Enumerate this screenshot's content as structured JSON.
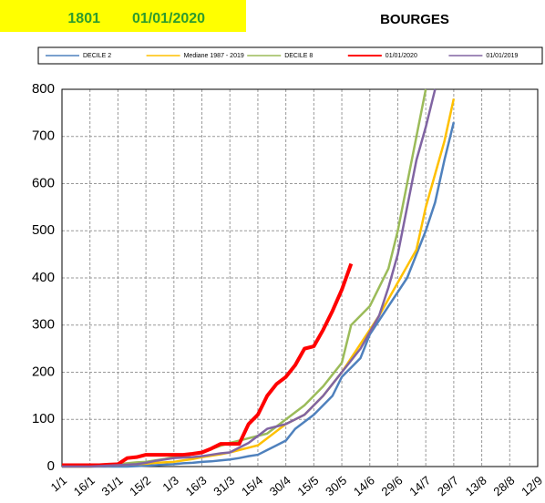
{
  "chart_data": {
    "type": "line",
    "header": {
      "code": "1801",
      "date": "01/01/2020"
    },
    "title": "BOURGES",
    "x": [
      0,
      5,
      10,
      15,
      20,
      25,
      30,
      35,
      40,
      45,
      50,
      55,
      60,
      65,
      70,
      75,
      80,
      85,
      90,
      95,
      100,
      105,
      110,
      115,
      120,
      125,
      130,
      135,
      140,
      145,
      150,
      155,
      160,
      165,
      170,
      175,
      180,
      185,
      190,
      195,
      200,
      205,
      210
    ],
    "series": [
      {
        "name": "DECILE 2",
        "color": "#4f81bd",
        "values": [
          0,
          0,
          0,
          0,
          0,
          0,
          0,
          0,
          1,
          2,
          3,
          4,
          5,
          7,
          8,
          10,
          11,
          13,
          15,
          18,
          22,
          25,
          35,
          45,
          55,
          80,
          95,
          110,
          130,
          150,
          190,
          210,
          230,
          280,
          310,
          340,
          370,
          400,
          450,
          500,
          560,
          650,
          730
        ]
      },
      {
        "name": "Mediane 1987 - 2019",
        "color": "#ffc000",
        "values": [
          0,
          0,
          0,
          0,
          1,
          2,
          3,
          4,
          5,
          6,
          8,
          9,
          10,
          13,
          16,
          20,
          23,
          26,
          30,
          35,
          40,
          45,
          60,
          75,
          90,
          100,
          110,
          130,
          150,
          175,
          200,
          230,
          260,
          290,
          320,
          355,
          390,
          425,
          460,
          550,
          620,
          690,
          780
        ]
      },
      {
        "name": "DECILE 8",
        "color": "#9bbb59",
        "values": [
          0,
          0,
          0,
          0,
          2,
          4,
          5,
          7,
          9,
          10,
          13,
          16,
          20,
          23,
          26,
          30,
          37,
          44,
          50,
          55,
          60,
          65,
          70,
          85,
          100,
          115,
          130,
          150,
          170,
          195,
          220,
          300,
          320,
          340,
          380,
          420,
          500,
          600,
          700,
          800,
          null,
          null,
          null
        ]
      },
      {
        "name": "01/01/2020",
        "color": "#ff0000",
        "width": 4,
        "values": [
          3,
          3,
          3,
          3,
          3,
          4,
          5,
          18,
          20,
          25,
          25,
          25,
          25,
          25,
          27,
          30,
          38,
          48,
          48,
          48,
          90,
          110,
          150,
          175,
          190,
          215,
          250,
          255,
          290,
          330,
          375,
          430,
          null,
          null,
          null,
          null,
          null,
          null,
          null,
          null,
          null,
          null,
          null
        ]
      },
      {
        "name": "01/01/2019",
        "color": "#8064a2",
        "values": [
          0,
          0,
          0,
          0,
          1,
          2,
          3,
          4,
          5,
          8,
          12,
          15,
          18,
          19,
          20,
          22,
          25,
          28,
          30,
          40,
          50,
          65,
          80,
          85,
          90,
          100,
          110,
          130,
          150,
          175,
          200,
          225,
          250,
          285,
          320,
          380,
          450,
          550,
          650,
          720,
          800,
          null,
          null
        ]
      }
    ],
    "xlim": [
      0,
      255
    ],
    "xticks": [
      {
        "value": 0,
        "label": "1/1"
      },
      {
        "value": 15,
        "label": "16/1"
      },
      {
        "value": 30,
        "label": "31/1"
      },
      {
        "value": 45,
        "label": "15/2"
      },
      {
        "value": 60,
        "label": "1/3"
      },
      {
        "value": 75,
        "label": "16/3"
      },
      {
        "value": 90,
        "label": "31/3"
      },
      {
        "value": 105,
        "label": "15/4"
      },
      {
        "value": 120,
        "label": "30/4"
      },
      {
        "value": 135,
        "label": "15/5"
      },
      {
        "value": 150,
        "label": "30/5"
      },
      {
        "value": 165,
        "label": "14/6"
      },
      {
        "value": 180,
        "label": "29/6"
      },
      {
        "value": 195,
        "label": "14/7"
      },
      {
        "value": 210,
        "label": "29/7"
      },
      {
        "value": 225,
        "label": "13/8"
      },
      {
        "value": 240,
        "label": "28/8"
      },
      {
        "value": 255,
        "label": "12/9"
      }
    ],
    "ylim": [
      0,
      800
    ],
    "yticks": [
      0,
      100,
      200,
      300,
      400,
      500,
      600,
      700,
      800
    ],
    "grid": true,
    "legend": "top"
  }
}
